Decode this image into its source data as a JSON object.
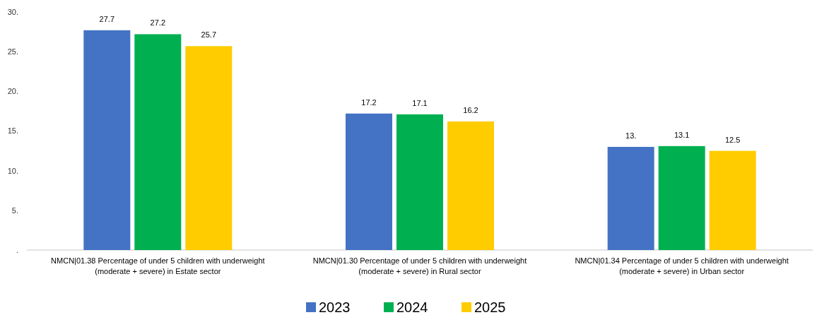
{
  "chart_data": {
    "type": "bar",
    "categories": [
      "NMCN|01.38 Percentage of under 5 children with underweight (moderate + severe) in Estate sector",
      "NMCN|01.30 Percentage of under 5 children with underweight (moderate + severe) in Rural sector",
      "NMCN|01.34 Percentage of under 5 children with underweight (moderate + severe) in Urban sector"
    ],
    "series": [
      {
        "name": "2023",
        "color": "#4472c4",
        "values": [
          27.7,
          17.2,
          13
        ],
        "value_labels": [
          "27.7",
          "17.2",
          "13."
        ]
      },
      {
        "name": "2024",
        "color": "#00b050",
        "values": [
          27.2,
          17.1,
          13.1
        ],
        "value_labels": [
          "27.2",
          "17.1",
          "13.1"
        ]
      },
      {
        "name": "2025",
        "color": "#ffcc00",
        "values": [
          25.7,
          16.2,
          12.5
        ],
        "value_labels": [
          "25.7",
          "16.2",
          "12.5"
        ]
      }
    ],
    "ylim": [
      0,
      30
    ],
    "yticks": [
      {
        "value": 0,
        "label": "."
      },
      {
        "value": 5,
        "label": "5."
      },
      {
        "value": 10,
        "label": "10."
      },
      {
        "value": 15,
        "label": "15."
      },
      {
        "value": 20,
        "label": "20."
      },
      {
        "value": 25,
        "label": "25."
      },
      {
        "value": 30,
        "label": "30."
      }
    ],
    "grid": false,
    "legend": "bottom"
  }
}
